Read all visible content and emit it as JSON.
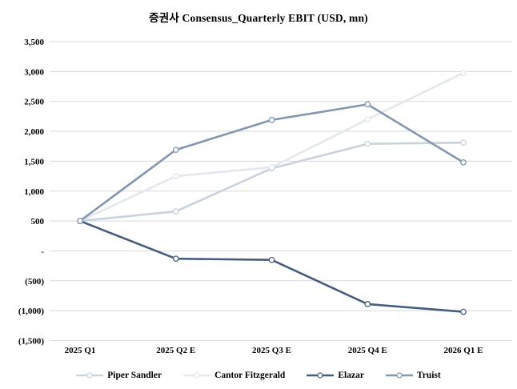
{
  "chart_data": {
    "type": "line",
    "title": "증권사 Consensus_Quarterly EBIT (USD, mn)",
    "categories": [
      "2025 Q1",
      "2025 Q2 E",
      "2025 Q3 E",
      "2025 Q4 E",
      "2026 Q1 E"
    ],
    "series": [
      {
        "name": "Piper Sandler",
        "color": "#C9D2DD",
        "values": [
          500,
          660,
          1380,
          1790,
          1810
        ]
      },
      {
        "name": "Cantor Fitzgerald",
        "color": "#E3E8EF",
        "values": [
          500,
          1250,
          1400,
          2200,
          2975
        ]
      },
      {
        "name": "Elazar",
        "color": "#475D7D",
        "values": [
          500,
          -130,
          -150,
          -890,
          -1020
        ]
      },
      {
        "name": "Truist",
        "color": "#8496B0",
        "values": [
          500,
          1690,
          2190,
          2450,
          1480
        ]
      }
    ],
    "y_axis": {
      "min": -1500,
      "max": 3500,
      "step": 500,
      "tick_labels": [
        "3,500",
        "3,000",
        "2,500",
        "2,000",
        "1,500",
        "1,000",
        "500",
        "-",
        "(500)",
        "(1,000)",
        "(1,500)"
      ]
    },
    "xlabel": "",
    "ylabel": "",
    "grid": true,
    "gridline_color": "#D9D9D9",
    "marker": "open-circle",
    "legend_position": "bottom"
  }
}
